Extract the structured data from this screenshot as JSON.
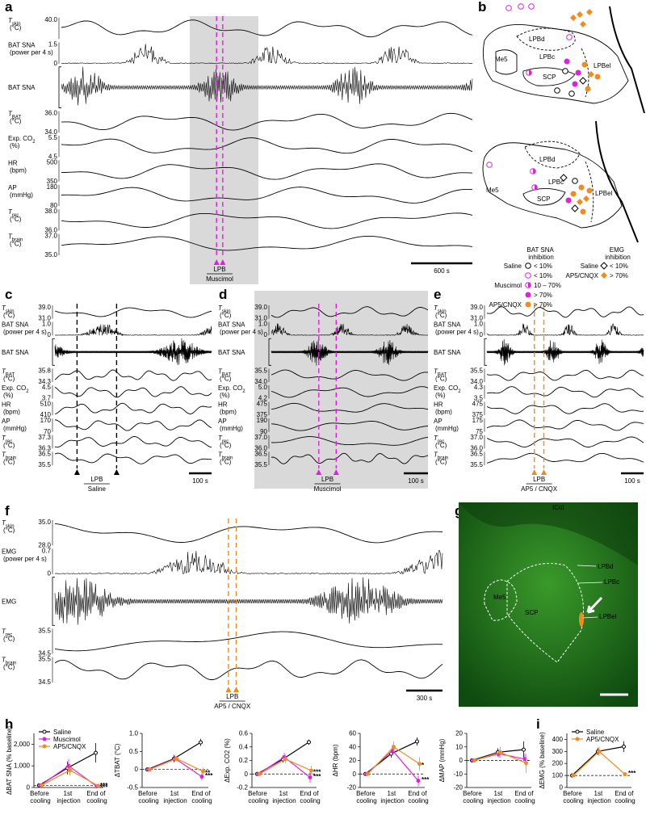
{
  "figure": {
    "panels": {
      "a": {
        "letter": "a",
        "marker_color": "#e020e0",
        "marker": "LPB",
        "drug": "Muscimol",
        "scale": "600 s",
        "channels": [
          {
            "sym": "T",
            "sub": "skin",
            "unit": "(°C)",
            "ticks": [
              "40.0"
            ]
          },
          {
            "name": "BAT SNA",
            "unit": "(power per 4 s)",
            "ticks": [
              "1.5",
              "0"
            ]
          },
          {
            "name": "BAT SNA",
            "ticks": []
          },
          {
            "sym": "T",
            "sub": "BAT",
            "unit": "(°C)",
            "ticks": [
              "36.0",
              "34.0"
            ]
          },
          {
            "name": "Exp. CO",
            "sub": "2",
            "unit": "(%)",
            "ticks": [
              "5.5",
              "4.5"
            ]
          },
          {
            "name": "HR",
            "unit": "(bpm)",
            "ticks": [
              "500",
              "350"
            ]
          },
          {
            "name": "AP",
            "unit": "(mmHg)",
            "ticks": [
              "180",
              "80"
            ]
          },
          {
            "sym": "T",
            "sub": "rec",
            "unit": "(°C)",
            "ticks": [
              "38.0",
              "36.0"
            ]
          },
          {
            "sym": "T",
            "sub": "brain",
            "unit": "(°C)",
            "ticks": [
              "37.0",
              "35.0"
            ]
          }
        ]
      },
      "b": {
        "letter": "b",
        "top": [
          "LPBd",
          "Me5",
          "LPBc",
          "LPBel",
          "SCP"
        ],
        "bottom": [
          "LPBd",
          "LPBc",
          "Me5",
          "SCP",
          "LPBel"
        ],
        "legend": {
          "bat_title": "BAT SNA inhibition",
          "emg_title": "EMG inhibition",
          "bat": [
            {
              "group": "Saline",
              "levels": [
                "< 10%"
              ]
            },
            {
              "group": "Muscimol",
              "levels": [
                "< 10%",
                "10 – 70%",
                "> 70%"
              ]
            },
            {
              "group": "AP5/CNQX",
              "levels": [
                "> 70%"
              ]
            }
          ],
          "emg": [
            {
              "group": "Saline",
              "levels": [
                "< 10%"
              ]
            },
            {
              "group": "AP5/CNQX",
              "levels": [
                "> 70%"
              ]
            }
          ]
        }
      },
      "c": {
        "letter": "c",
        "marker_color": "#000000",
        "marker": "LPB",
        "drug": "Saline",
        "scale": "100 s",
        "channels": [
          {
            "sym": "T",
            "sub": "skin",
            "unit": "(°C)",
            "ticks": [
              "39.0",
              "31.0"
            ]
          },
          {
            "name": "BAT SNA",
            "unit": "(power per 4 s)",
            "ticks": [
              "1.0",
              "0"
            ]
          },
          {
            "name": "BAT SNA",
            "ticks": []
          },
          {
            "sym": "T",
            "sub": "BAT",
            "unit": "(°C)",
            "ticks": [
              "35.8",
              "34.3"
            ]
          },
          {
            "name": "Exp. CO",
            "sub": "2",
            "unit": "(%)",
            "ticks": [
              "4.5",
              "3.7"
            ]
          },
          {
            "name": "HR",
            "unit": "(bpm)",
            "ticks": [
              "510",
              "410"
            ]
          },
          {
            "name": "AP",
            "unit": "(mmHg)",
            "ticks": [
              "170",
              "70"
            ]
          },
          {
            "sym": "T",
            "sub": "rec",
            "unit": "(°C)",
            "ticks": [
              "37.3",
              "36.3"
            ]
          },
          {
            "sym": "T",
            "sub": "brain",
            "unit": "(°C)",
            "ticks": [
              "36.5",
              "35.5"
            ]
          }
        ]
      },
      "d": {
        "letter": "d",
        "marker_color": "#e020e0",
        "marker": "LPB",
        "drug": "Muscimol",
        "scale": "100 s",
        "channels": [
          {
            "sym": "T",
            "sub": "skin",
            "unit": "(°C)",
            "ticks": [
              "39.0",
              "31.0"
            ]
          },
          {
            "name": "BAT SNA",
            "unit": "(power per 4 s)",
            "ticks": [
              "1.0",
              "0"
            ]
          },
          {
            "name": "BAT SNA",
            "ticks": []
          },
          {
            "sym": "T",
            "sub": "BAT",
            "unit": "(°C)",
            "ticks": [
              "35.5",
              "34.0"
            ]
          },
          {
            "name": "Exp. CO",
            "sub": "2",
            "unit": "(%)",
            "ticks": [
              "5.0",
              "4.2"
            ]
          },
          {
            "name": "HR",
            "unit": "(bpm)",
            "ticks": [
              "475",
              "375"
            ]
          },
          {
            "name": "AP",
            "unit": "(mmHg)",
            "ticks": [
              "190",
              "90"
            ]
          },
          {
            "sym": "T",
            "sub": "rec",
            "unit": "(°C)",
            "ticks": [
              "37.0",
              "36.0"
            ]
          },
          {
            "sym": "T",
            "sub": "brain",
            "unit": "(°C)",
            "ticks": [
              "36.5",
              "35.5"
            ]
          }
        ]
      },
      "e": {
        "letter": "e",
        "marker_color": "#f08c1e",
        "marker": "LPB",
        "drug": "AP5 / CNQX",
        "scale": "100 s",
        "channels": [
          {
            "sym": "T",
            "sub": "skin",
            "unit": "(°C)",
            "ticks": [
              "39.0",
              "31.0"
            ]
          },
          {
            "name": "BAT SNA",
            "unit": "(power per 4 s)",
            "ticks": [
              "1.0",
              "0"
            ]
          },
          {
            "name": "BAT SNA",
            "ticks": []
          },
          {
            "sym": "T",
            "sub": "BAT",
            "unit": "(°C)",
            "ticks": [
              "35.5",
              "34.0"
            ]
          },
          {
            "name": "Exp. CO",
            "sub": "2",
            "unit": "(%)",
            "ticks": [
              "4.3",
              "3.5"
            ]
          },
          {
            "name": "HR",
            "unit": "(bpm)",
            "ticks": [
              "475",
              "375"
            ]
          },
          {
            "name": "AP",
            "unit": "(mmHg)",
            "ticks": [
              "175",
              "75"
            ]
          },
          {
            "sym": "T",
            "sub": "rec",
            "unit": "(°C)",
            "ticks": [
              "37.0",
              "36.0"
            ]
          },
          {
            "sym": "T",
            "sub": "brain",
            "unit": "(°C)",
            "ticks": [
              "36.5",
              "35.5"
            ]
          }
        ]
      },
      "f": {
        "letter": "f",
        "marker_color": "#f08c1e",
        "marker": "LPB",
        "drug": "AP5 / CNQX",
        "scale": "300 s",
        "channels": [
          {
            "sym": "T",
            "sub": "skin",
            "unit": "(°C)",
            "ticks": [
              "35.0",
              "28.0"
            ]
          },
          {
            "name": "EMG",
            "unit": "(power per 4 s)",
            "ticks": [
              "0.7",
              "0"
            ]
          },
          {
            "name": "EMG",
            "ticks": []
          },
          {
            "sym": "T",
            "sub": "rec",
            "unit": "(°C)",
            "ticks": [
              "35.5",
              "34.5"
            ]
          },
          {
            "sym": "T",
            "sub": "brain",
            "unit": "(°C)",
            "ticks": [
              "35.5",
              "34.5"
            ]
          }
        ]
      },
      "g": {
        "letter": "g",
        "labels": [
          "ICol",
          "LPBd",
          "LPBc",
          "LPBel",
          "Me5",
          "SCP"
        ]
      },
      "h": {
        "letter": "h"
      },
      "i": {
        "letter": "i"
      }
    }
  },
  "chart_data": [
    {
      "type": "line",
      "y_label": "ΔBAT SNA (% baseline)",
      "categories": [
        "Before cooling",
        "1st injection",
        "End of cooling"
      ],
      "ylim": [
        0,
        2500
      ],
      "yticks": [
        0,
        {
          "value": 1000,
          "label": "1,000"
        },
        {
          "value": 2000,
          "label": "2,000"
        }
      ],
      "baseline": 100,
      "legend": true,
      "series": [
        {
          "name": "Saline",
          "color": "#000000",
          "values": [
            100,
            900,
            1600
          ],
          "errors": [
            0,
            300,
            450
          ]
        },
        {
          "name": "Muscimol",
          "color": "#e020e0",
          "values": [
            100,
            1000,
            50
          ],
          "errors": [
            0,
            300,
            30
          ],
          "end_label": "***"
        },
        {
          "name": "AP5/CNQX",
          "color": "#f08c1e",
          "values": [
            100,
            800,
            80
          ],
          "errors": [
            0,
            250,
            40
          ],
          "end_label": "***"
        }
      ]
    },
    {
      "type": "line",
      "y_label": "ΔTBAT (°C)",
      "categories": [
        "Before cooling",
        "1st injection",
        "End of cooling"
      ],
      "ylim": [
        -0.5,
        1
      ],
      "yticks": [
        -0.5,
        0,
        0.5,
        {
          "value": 1,
          "label": "1.0"
        }
      ],
      "baseline": 0,
      "legend": false,
      "series": [
        {
          "name": "Saline",
          "color": "#000000",
          "values": [
            0,
            0.3,
            0.75
          ],
          "errors": [
            0,
            0.1,
            0.1
          ]
        },
        {
          "name": "Muscimol",
          "color": "#e020e0",
          "values": [
            0,
            0.3,
            -0.2
          ],
          "errors": [
            0,
            0.08,
            0.1
          ],
          "end_label": "***"
        },
        {
          "name": "AP5/CNQX",
          "color": "#f08c1e",
          "values": [
            0,
            0.3,
            -0.05
          ],
          "errors": [
            0,
            0.08,
            0.1
          ],
          "end_label": "**"
        }
      ]
    },
    {
      "type": "line",
      "y_label": "ΔExp. CO2 (%)",
      "categories": [
        "Before cooling",
        "1st injection",
        "End of cooling"
      ],
      "ylim": [
        -0.2,
        0.6
      ],
      "yticks": [
        -0.2,
        0,
        0.2,
        0.4,
        0.6
      ],
      "baseline": 0,
      "legend": false,
      "series": [
        {
          "name": "Saline",
          "color": "#000000",
          "values": [
            0,
            0.22,
            0.47
          ],
          "errors": [
            0,
            0.05,
            0.04
          ]
        },
        {
          "name": "Muscimol",
          "color": "#e020e0",
          "values": [
            0,
            0.25,
            -0.05
          ],
          "errors": [
            0,
            0.06,
            0.08
          ],
          "end_label": "***"
        },
        {
          "name": "AP5/CNQX",
          "color": "#f08c1e",
          "values": [
            0,
            0.22,
            0.05
          ],
          "errors": [
            0,
            0.06,
            0.07
          ],
          "end_label": "***"
        }
      ]
    },
    {
      "type": "line",
      "y_label": "ΔHR (bpm)",
      "categories": [
        "Before cooling",
        "1st injection",
        "End of cooling"
      ],
      "ylim": [
        -20,
        60
      ],
      "yticks": [
        -20,
        0,
        20,
        40,
        60
      ],
      "baseline": 0,
      "legend": false,
      "series": [
        {
          "name": "Saline",
          "color": "#000000",
          "values": [
            0,
            30,
            48
          ],
          "errors": [
            0,
            6,
            6
          ]
        },
        {
          "name": "Muscimol",
          "color": "#e020e0",
          "values": [
            0,
            35,
            -10
          ],
          "errors": [
            0,
            8,
            8
          ],
          "end_label": "***"
        },
        {
          "name": "AP5/CNQX",
          "color": "#f08c1e",
          "values": [
            0,
            40,
            15
          ],
          "errors": [
            0,
            8,
            10
          ],
          "end_label": "*"
        }
      ]
    },
    {
      "type": "line",
      "y_label": "ΔMAP (mmHg)",
      "categories": [
        "Before cooling",
        "1st injection",
        "End of cooling"
      ],
      "ylim": [
        -20,
        20
      ],
      "yticks": [
        -20,
        -10,
        0,
        10,
        20
      ],
      "baseline": 0,
      "legend": false,
      "series": [
        {
          "name": "Saline",
          "color": "#000000",
          "values": [
            0,
            6,
            8
          ],
          "errors": [
            0,
            3,
            6
          ]
        },
        {
          "name": "Muscimol",
          "color": "#e020e0",
          "values": [
            0,
            5,
            1
          ],
          "errors": [
            0,
            3,
            4
          ]
        },
        {
          "name": "AP5/CNQX",
          "color": "#f08c1e",
          "values": [
            0,
            6,
            -2
          ],
          "errors": [
            0,
            4,
            7
          ]
        }
      ]
    },
    {
      "type": "line",
      "y_label": "ΔEMG (% baseline)",
      "categories": [
        "Before cooling",
        "1st injection",
        "End of cooling"
      ],
      "ylim": [
        0,
        450
      ],
      "yticks": [
        0,
        100,
        200,
        300,
        400
      ],
      "baseline": 100,
      "legend": true,
      "series": [
        {
          "name": "Saline",
          "color": "#000000",
          "values": [
            100,
            300,
            340
          ],
          "errors": [
            0,
            30,
            45
          ]
        },
        {
          "name": "AP5/CNQX",
          "color": "#f08c1e",
          "values": [
            100,
            300,
            110
          ],
          "errors": [
            0,
            40,
            15
          ],
          "end_label": "***"
        }
      ]
    }
  ]
}
